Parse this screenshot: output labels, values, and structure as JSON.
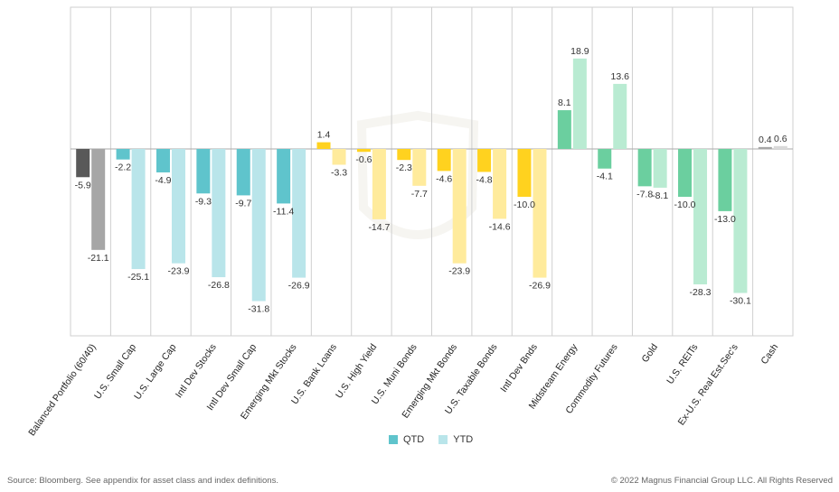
{
  "chart_data": {
    "type": "bar",
    "categories": [
      "Balanced Portfolio (60/40)",
      "U.S. Small Cap",
      "U.S. Large Cap",
      "Intl Dev Stocks",
      "Intl Dev Small Cap",
      "Emerging Mkt Stocks",
      "U.S. Bank Loans",
      "U.S. High Yield",
      "U.S. Muni Bonds",
      "Emerging Mkt Bonds",
      "U.S. Taxable Bonds",
      "Intl Dev Bnds",
      "Midstream Energy",
      "Commodity Futures",
      "Gold",
      "U.S. REITs",
      "Ex-U.S. Real Est.Sec's",
      "Cash"
    ],
    "series": [
      {
        "name": "QTD",
        "values": [
          -5.9,
          -2.2,
          -4.9,
          -9.3,
          -9.7,
          -11.4,
          1.4,
          -0.6,
          -2.3,
          -4.6,
          -4.8,
          -10.0,
          8.1,
          -4.1,
          -7.8,
          -10.0,
          -13.0,
          0.4
        ]
      },
      {
        "name": "YTD",
        "values": [
          -21.1,
          -25.1,
          -23.9,
          -26.8,
          -31.8,
          -26.9,
          -3.3,
          -14.7,
          -7.7,
          -23.9,
          -14.6,
          -26.9,
          18.9,
          13.6,
          -8.1,
          -28.3,
          -30.1,
          0.6
        ]
      }
    ],
    "value_labels": {
      "QTD": [
        "-5.9",
        "-2.2",
        "-4.9",
        "-9.3",
        "-9.7",
        "-11.4",
        "1.4",
        "-0.6",
        "-2.3",
        "-4.6",
        "-4.8",
        "-10.0",
        "8.1",
        "-4.1",
        "-7.8",
        "-10.0",
        "-13.0",
        "0.4"
      ],
      "YTD": [
        "-21.1",
        "-25.1",
        "-23.9",
        "-26.8",
        "-31.8",
        "-26.9",
        "-3.3",
        "-14.7",
        "-7.7",
        "-23.9",
        "-14.6",
        "-26.9",
        "18.9",
        "13.6",
        "-8.1",
        "-28.3",
        "-30.1",
        "0.6"
      ]
    },
    "groups": [
      {
        "indices": [
          0
        ],
        "qtd_color": "#595959",
        "ytd_color": "#a6a6a6"
      },
      {
        "indices": [
          1,
          2,
          3,
          4,
          5
        ],
        "qtd_color": "#5fc4cc",
        "ytd_color": "#b9e5ea"
      },
      {
        "indices": [
          6,
          7,
          8,
          9,
          10,
          11
        ],
        "qtd_color": "#ffd21f",
        "ytd_color": "#ffeb9c"
      },
      {
        "indices": [
          12,
          13
        ],
        "qtd_color": "#6bcf9f",
        "ytd_color": "#b9ebd2"
      },
      {
        "indices": [
          14,
          15,
          16
        ],
        "qtd_color": "#6bcf9f",
        "ytd_color": "#b9ebd2"
      },
      {
        "indices": [
          17
        ],
        "qtd_color": "#a6a6a6",
        "ytd_color": "#d9d9d9"
      }
    ],
    "ylim": [
      -38,
      28
    ],
    "grid": "vertical-separators",
    "legend_position": "bottom-center",
    "title": "",
    "xlabel": "",
    "ylabel": ""
  },
  "legend": {
    "qtd_label": "QTD",
    "ytd_label": "YTD",
    "qtd_color": "#5fc4cc",
    "ytd_color": "#b9e5ea"
  },
  "footer": {
    "source": "Source: Bloomberg. See appendix for asset class and index definitions.",
    "copyright": "© 2022 Magnus Financial Group LLC. All Rights Reserved"
  }
}
